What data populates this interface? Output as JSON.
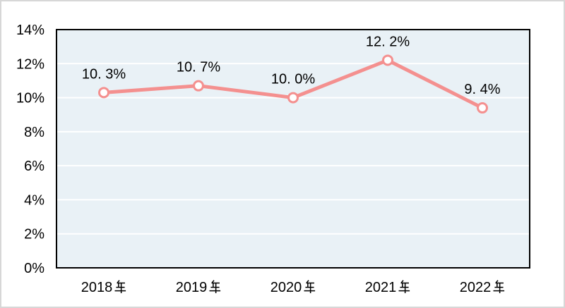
{
  "window": {
    "background_color": "#FFFFFF",
    "frame_border_color": "#D7D7D7"
  },
  "chart_data": {
    "type": "line",
    "title": "",
    "xlabel": "",
    "ylabel": "",
    "categories": [
      "2018年",
      "2019年",
      "2020年",
      "2021年",
      "2022年"
    ],
    "values": [
      10.3,
      10.7,
      10.0,
      12.2,
      9.4
    ],
    "point_labels": [
      "10. 3%",
      "10. 7%",
      "10. 0%",
      "12. 2%",
      "9. 4%"
    ],
    "y_ticks": [
      "0%",
      "2%",
      "4%",
      "6%",
      "8%",
      "10%",
      "12%",
      "14%"
    ],
    "y_tick_values": [
      0,
      2,
      4,
      6,
      8,
      10,
      12,
      14
    ],
    "ylim": [
      0,
      14
    ],
    "grid": true,
    "legend": false,
    "colors": {
      "line": "#F4908F",
      "marker_fill": "#FFFFFF",
      "marker_stroke": "#F4908F",
      "plot_background": "#E9F1F6",
      "gridline": "#FFFFFF",
      "axis_frame": "#000000",
      "text": "#000000"
    }
  }
}
